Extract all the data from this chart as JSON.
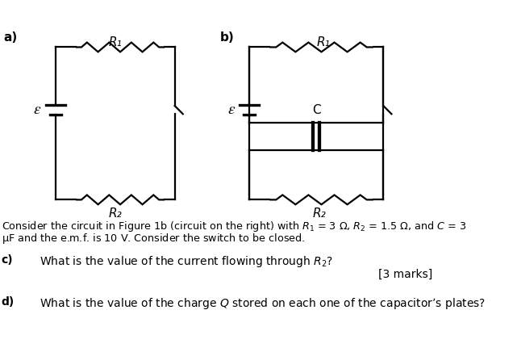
{
  "fig_width": 6.41,
  "fig_height": 4.36,
  "dpi": 100,
  "bg_color": "#ffffff",
  "label_a": "a)",
  "label_b": "b)",
  "label_R1": "R₁",
  "label_R2": "R₂",
  "label_C": "C",
  "label_emf": "ε",
  "question_c": "c)",
  "question_c_text": "What is the value of the current flowing through $R_2$?",
  "marks_c": "[3 marks]",
  "question_d": "d)",
  "question_d_text": "What is the value of the charge $Q$ stored on each one of the capacitor’s plates?",
  "para_line1": "Consider the circuit in Figure 1b (circuit on the right) with $R_1$ = 3 Ω, $R_2$ = 1.5 Ω, and $C$ = 3",
  "para_line2": "μF and the e.m.f. is $10$ V. Consider the switch to be closed."
}
